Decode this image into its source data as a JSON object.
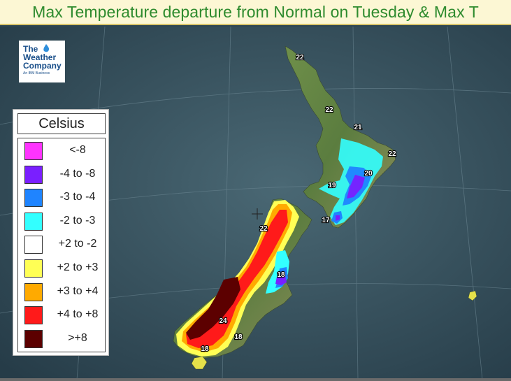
{
  "title": "Max Temperature departure from Normal on Tuesday & Max T",
  "logo": {
    "line1": "The",
    "line2": "Weather",
    "line3": "Company",
    "tagline": "An IBM Business"
  },
  "legend": {
    "title": "Celsius",
    "items": [
      {
        "label": "<-8",
        "color": "#ff33ff"
      },
      {
        "label": "-4 to -8",
        "color": "#7a1fff"
      },
      {
        "label": "-3 to -4",
        "color": "#1f84ff"
      },
      {
        "label": "-2 to -3",
        "color": "#33ffff"
      },
      {
        "label": "+2 to -2",
        "color": "#ffffff"
      },
      {
        "label": "+2 to +3",
        "color": "#ffff55"
      },
      {
        "label": "+3 to +4",
        "color": "#ffaa00"
      },
      {
        "label": "+4 to +8",
        "color": "#ff1a1a"
      },
      {
        "label": ">+8",
        "color": "#5c0000"
      }
    ]
  },
  "max_temps": [
    {
      "label": "22",
      "region": "far-north"
    },
    {
      "label": "22",
      "region": "auckland"
    },
    {
      "label": "21",
      "region": "bay-of-plenty"
    },
    {
      "label": "22",
      "region": "east-cape"
    },
    {
      "label": "20",
      "region": "hawkes-bay"
    },
    {
      "label": "19",
      "region": "taranaki"
    },
    {
      "label": "17",
      "region": "wellington"
    },
    {
      "label": "22",
      "region": "nelson"
    },
    {
      "label": "18",
      "region": "christchurch"
    },
    {
      "label": "24",
      "region": "central-otago"
    },
    {
      "label": "18",
      "region": "dunedin"
    },
    {
      "label": "18",
      "region": "invercargill"
    }
  ]
}
